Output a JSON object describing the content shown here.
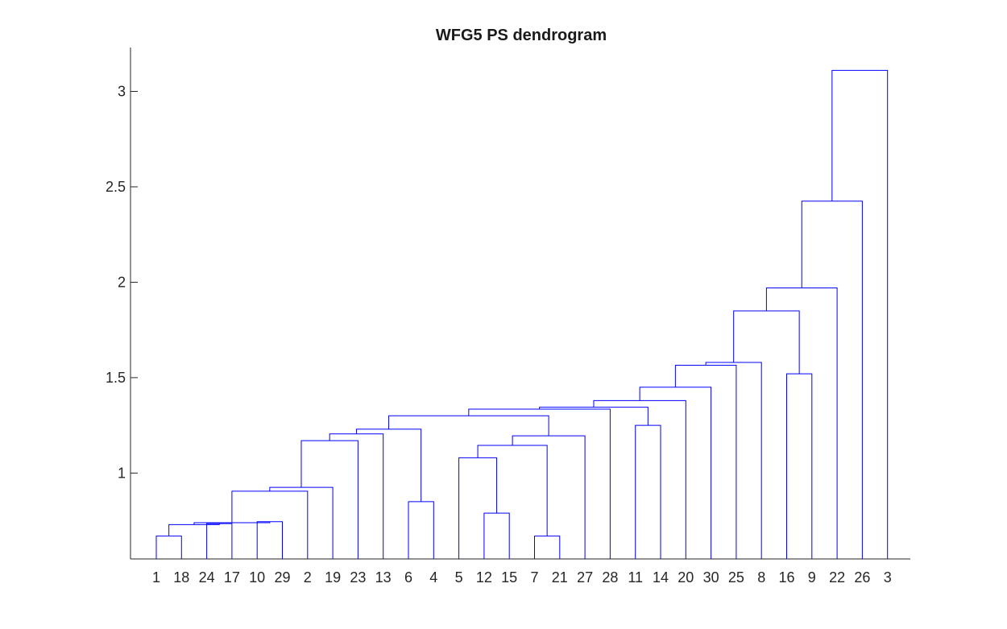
{
  "chart_data": {
    "type": "dendrogram",
    "title": "WFG5 PS dendrogram",
    "xlabel": "",
    "ylabel": "",
    "leaf_order": [
      "1",
      "18",
      "24",
      "17",
      "10",
      "29",
      "2",
      "19",
      "23",
      "13",
      "6",
      "4",
      "5",
      "12",
      "15",
      "7",
      "21",
      "27",
      "28",
      "11",
      "14",
      "20",
      "30",
      "25",
      "8",
      "16",
      "9",
      "22",
      "26",
      "3"
    ],
    "ylim": [
      0.55,
      3.23
    ],
    "yticks": [
      1,
      1.5,
      2,
      2.5,
      3
    ],
    "grid": false,
    "line_color": "#0000ff",
    "merges": [
      {
        "id": "a",
        "left": "1",
        "right": "18",
        "height": 0.67
      },
      {
        "id": "b",
        "left": "24",
        "right": "17",
        "height": 0.735
      },
      {
        "id": "c",
        "left": "10",
        "right": "29",
        "height": 0.745
      },
      {
        "id": "d",
        "left": "a",
        "right": "b",
        "height": 0.73
      },
      {
        "id": "e",
        "left": "d",
        "right": "c",
        "height": 0.74
      },
      {
        "id": "f",
        "left": "e",
        "right": "2",
        "height": 0.905
      },
      {
        "id": "g",
        "left": "f",
        "right": "19",
        "height": 0.925
      },
      {
        "id": "h",
        "left": "g",
        "right": "23",
        "height": 1.17
      },
      {
        "id": "i",
        "left": "h",
        "right": "13",
        "height": 1.205
      },
      {
        "id": "j",
        "left": "6",
        "right": "4",
        "height": 0.85
      },
      {
        "id": "k",
        "left": "i",
        "right": "j",
        "height": 1.23
      },
      {
        "id": "l",
        "left": "12",
        "right": "15",
        "height": 0.79
      },
      {
        "id": "m",
        "left": "5",
        "right": "l",
        "height": 1.08
      },
      {
        "id": "n",
        "left": "7",
        "right": "21",
        "height": 0.67
      },
      {
        "id": "o",
        "left": "m",
        "right": "n",
        "height": 1.145
      },
      {
        "id": "p",
        "left": "o",
        "right": "27",
        "height": 1.195
      },
      {
        "id": "q",
        "left": "k",
        "right": "p",
        "height": 1.3
      },
      {
        "id": "r",
        "left": "q",
        "right": "28",
        "height": 1.335
      },
      {
        "id": "s",
        "left": "11",
        "right": "14",
        "height": 1.25
      },
      {
        "id": "t",
        "left": "r",
        "right": "s",
        "height": 1.345
      },
      {
        "id": "u",
        "left": "t",
        "right": "20",
        "height": 1.38
      },
      {
        "id": "v",
        "left": "u",
        "right": "30",
        "height": 1.45
      },
      {
        "id": "w",
        "left": "v",
        "right": "25",
        "height": 1.565
      },
      {
        "id": "x",
        "left": "w",
        "right": "8",
        "height": 1.58
      },
      {
        "id": "y",
        "left": "16",
        "right": "9",
        "height": 1.52
      },
      {
        "id": "z",
        "left": "x",
        "right": "y",
        "height": 1.85
      },
      {
        "id": "aa",
        "left": "z",
        "right": "22",
        "height": 1.97
      },
      {
        "id": "bb",
        "left": "aa",
        "right": "26",
        "height": 2.425
      },
      {
        "id": "cc",
        "left": "bb",
        "right": "3",
        "height": 3.11
      }
    ]
  }
}
